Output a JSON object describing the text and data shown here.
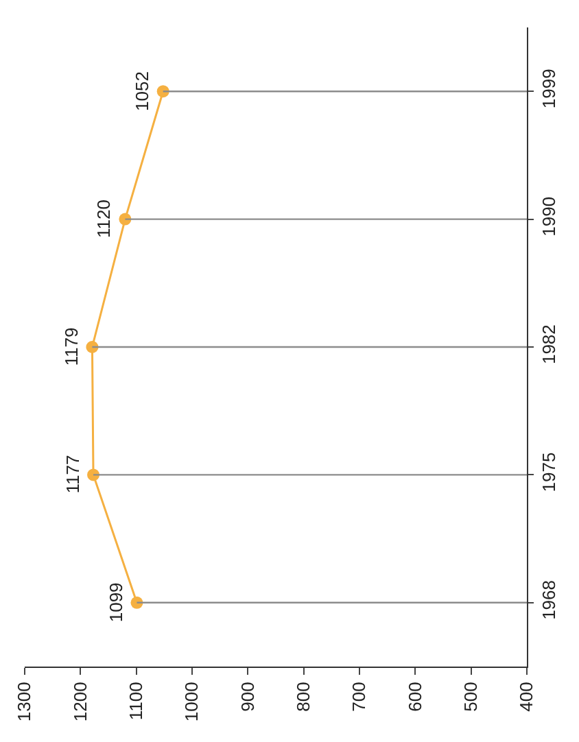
{
  "chart_data": {
    "type": "lollipop",
    "orientation": "horizontal",
    "categories": [
      "1999",
      "1990",
      "1982",
      "1975",
      "1968"
    ],
    "values": [
      1052,
      1120,
      1179,
      1177,
      1099
    ],
    "color": "#f5b041",
    "line_style": "solid",
    "marker": "circle",
    "xlim": [
      1300,
      400
    ],
    "xticks": [
      1300,
      1200,
      1100,
      1000,
      900,
      800,
      700,
      600,
      500,
      400
    ],
    "data_labels": true,
    "grid": false
  }
}
